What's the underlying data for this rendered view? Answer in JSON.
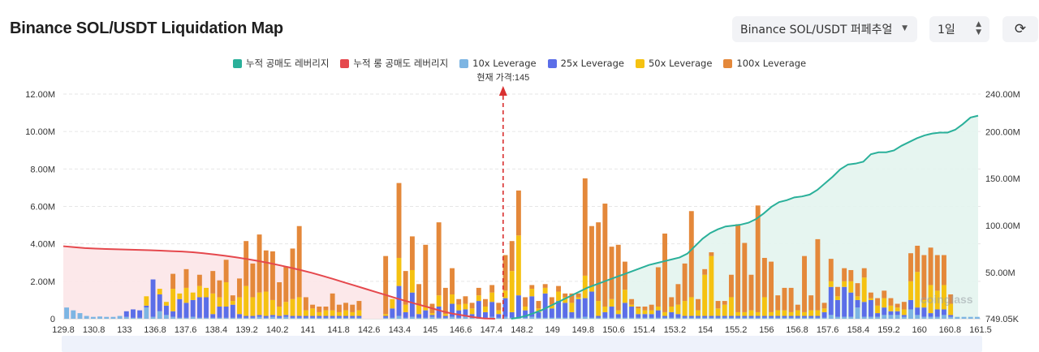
{
  "header": {
    "title": "Binance SOL/USDT Liquidation Map"
  },
  "controls": {
    "exchange_select": "Binance SOL/USDT 퍼페추얼",
    "range_select": "1일"
  },
  "icons": {
    "refresh": "refresh-icon",
    "caret": "chevron-down-icon"
  },
  "watermark": "coinglass",
  "colors": {
    "short_cum": "#2ab09a",
    "long_cum": "#e5484d",
    "lev10": "#7db5e3",
    "lev25": "#5b6ee8",
    "lev50": "#f5c211",
    "lev100": "#e4883a",
    "short_fill": "#e3f4ee",
    "long_fill": "#fce6e8",
    "price_line": "#d93030"
  },
  "chart_data": {
    "type": "bar",
    "title": "Binance SOL/USDT Liquidation Map",
    "current_price": 145,
    "current_price_label": "현재 가격:145",
    "x_tick_labels": [
      "129.8",
      "130.8",
      "133",
      "136.8",
      "137.6",
      "138.4",
      "139.2",
      "140.2",
      "141",
      "141.8",
      "142.6",
      "143.4",
      "145",
      "146.6",
      "147.4",
      "148.2",
      "149",
      "149.8",
      "150.6",
      "151.4",
      "153.2",
      "154",
      "155.2",
      "156",
      "156.8",
      "157.6",
      "158.4",
      "159.2",
      "160",
      "160.8",
      "161.5"
    ],
    "x_range": [
      129.8,
      161.5
    ],
    "y_left_range": [
      0,
      12000000
    ],
    "y_left_ticks": [
      "0",
      "2.00M",
      "4.00M",
      "6.00M",
      "8.00M",
      "10.00M",
      "12.00M"
    ],
    "y_right_range": [
      749050,
      240000000
    ],
    "y_right_ticks": [
      "749.05K",
      "50.00M",
      "100.00M",
      "150.00M",
      "200.00M",
      "240.00M"
    ],
    "grid": true,
    "legend_position": "top",
    "legend": [
      "누적 공매도 레버리지",
      "누적 롱 공매도 레버리지",
      "10x Leverage",
      "25x Leverage",
      "50x Leverage",
      "100x Leverage"
    ],
    "series": [
      {
        "name": "10x Leverage",
        "values": [
          0.6,
          0.45,
          0.3,
          0.15,
          0.1,
          0.12,
          0.1,
          0.1,
          0.15,
          0.1,
          0.05,
          0.05,
          0.6,
          0.1,
          0.4,
          0.2,
          0.1,
          0.05,
          0.05,
          0.1,
          0.05,
          0.05,
          0.05,
          0.05,
          0.05,
          0.05,
          0.05,
          0.05,
          0.05,
          0.1,
          0.05,
          0.1,
          0.05,
          0.1,
          0.05,
          0.05,
          0.05,
          0.05,
          0.05,
          0.05,
          0.05,
          0.05,
          0.05,
          0.05,
          0.05,
          0,
          0,
          0,
          0.05,
          0.05,
          0.15,
          0.05,
          0.1,
          0.05,
          0.05,
          0.1,
          0.05,
          0.05,
          0.1,
          0.05,
          0.1,
          0.05,
          0.05,
          0.05,
          0.1,
          0.05,
          0.1,
          0.05,
          0.05,
          0.05,
          0.1,
          0.05,
          0.05,
          0.05,
          0.05,
          0.05,
          0.05,
          0.05,
          0.1,
          0.05,
          0.05,
          0.05,
          0.05,
          0.05,
          0.05,
          0.05,
          0.05,
          0.05,
          0.05,
          0.05,
          0.05,
          0.05,
          0.05,
          0.05,
          0.05,
          0.05,
          0.05,
          0.05,
          0.05,
          0.05,
          0.05,
          0.05,
          0.05,
          0.05,
          0.05,
          0.05,
          0.05,
          0.05,
          0.05,
          0.05,
          0.05,
          0.05,
          0.05,
          0.05,
          0.05,
          0.2,
          0.1,
          0.1,
          0.1,
          0.6,
          0.1,
          0.1,
          0.1,
          0.2,
          0.2,
          0.2,
          0.1,
          0.5,
          0.2,
          0.1,
          0.1,
          0.1,
          0.2,
          0.1,
          0.1,
          0.1,
          0.1,
          0.1
        ]
      },
      {
        "name": "25x Leverage",
        "values": [
          0,
          0,
          0,
          0,
          0,
          0,
          0,
          0,
          0,
          0.3,
          0.45,
          0.4,
          0.1,
          2.0,
          0.9,
          0.5,
          0.3,
          1.0,
          0.8,
          0.9,
          1.1,
          1.1,
          0.2,
          0.6,
          0.6,
          0.7,
          0.2,
          0.1,
          0.1,
          0.1,
          0.1,
          0.1,
          0.1,
          0.1,
          0.1,
          0.1,
          0.1,
          0.1,
          0.1,
          0.1,
          0.1,
          0.1,
          0.1,
          0.1,
          0.1,
          0,
          0,
          0,
          0.1,
          0.5,
          1.6,
          0.3,
          1.3,
          0.2,
          0.4,
          0.1,
          0.6,
          0.1,
          0.7,
          0.4,
          0.4,
          0.2,
          0.9,
          0.3,
          0.8,
          0.2,
          1.0,
          0.3,
          1.2,
          0.4,
          1.1,
          0.3,
          1.3,
          0.5,
          0.9,
          0.8,
          0.3,
          1.0,
          1.0,
          1.4,
          0.1,
          0.3,
          0.6,
          0.2,
          0.8,
          0.6,
          0.2,
          0.2,
          0.2,
          0.4,
          0.1,
          0.3,
          0.2,
          0.1,
          0.1,
          0.1,
          0.1,
          0.1,
          0.1,
          0.1,
          0.1,
          0.1,
          0.1,
          0.1,
          0.1,
          0.1,
          0.1,
          0.1,
          0.1,
          0.1,
          0.1,
          0.1,
          0.1,
          0.1,
          0.3,
          1.5,
          0.9,
          1.6,
          1.3,
          0.4,
          0.8,
          0.9,
          0.2,
          0.4,
          0.2,
          0.2,
          0.1,
          0.5,
          0.4,
          0.5,
          0.2,
          0.4,
          0.3,
          0.1
        ]
      },
      {
        "name": "50x Leverage",
        "values": [
          0,
          0,
          0,
          0,
          0,
          0,
          0,
          0,
          0,
          0,
          0,
          0,
          0.5,
          0,
          0.3,
          0.2,
          1.2,
          0.3,
          0.8,
          0.4,
          0.6,
          0.5,
          1.1,
          0.5,
          1.3,
          0.2,
          0.9,
          1.6,
          1.0,
          1.2,
          1.3,
          0.8,
          0.5,
          0.7,
          0.9,
          1.0,
          0.3,
          0.4,
          0.2,
          0.3,
          0.3,
          0.2,
          0.3,
          0.2,
          0.3,
          0,
          0,
          0,
          0.1,
          0.5,
          1.5,
          0.4,
          1.2,
          0.5,
          0.2,
          0.1,
          0.6,
          0.1,
          0.5,
          0.3,
          0.3,
          0.3,
          0.3,
          0.3,
          0.5,
          0.2,
          0.4,
          2.2,
          3.2,
          0.2,
          0.4,
          0.2,
          0.3,
          0.2,
          0.5,
          0.3,
          0.5,
          0.1,
          1.2,
          0.3,
          0.8,
          0.3,
          0.4,
          0.2,
          0.7,
          0.1,
          0.3,
          0.2,
          0.2,
          0.2,
          0.2,
          0.3,
          0.5,
          0.8,
          1.0,
          0.3,
          2.2,
          3.2,
          0.4,
          0.6,
          1.0,
          0.2,
          0.2,
          0.3,
          0.2,
          1.0,
          0.2,
          0.3,
          0.3,
          0.2,
          0.3,
          0.2,
          0.3,
          0.3,
          0.2,
          0.3,
          0.2,
          0.3,
          0.6,
          0.2,
          1.3,
          0.1,
          0.4,
          0.5,
          0.3,
          0.2,
          0.3,
          1.0,
          1.9,
          0.4,
          1.5,
          1.0,
          1.3,
          0.6
        ]
      },
      {
        "name": "100x Leverage",
        "values": [
          0,
          0,
          0,
          0,
          0,
          0,
          0,
          0,
          0,
          0,
          0,
          0,
          0,
          0,
          0,
          0,
          0.8,
          0,
          1.0,
          0,
          0.6,
          0,
          1.2,
          0.9,
          1.2,
          0.3,
          1.0,
          2.4,
          1.8,
          3.1,
          2.2,
          2.6,
          1.3,
          1.9,
          2.7,
          3.8,
          0.7,
          0.2,
          0.3,
          0.2,
          0.9,
          0.4,
          0.4,
          0.4,
          0.5,
          0,
          0,
          0,
          3.1,
          0,
          4.0,
          1.8,
          1.8,
          1.1,
          3.3,
          0.5,
          3.9,
          1.4,
          1.4,
          0.3,
          0.4,
          0.3,
          0.4,
          0.4,
          0.4,
          0.4,
          1.9,
          1.6,
          2.4,
          0.5,
          0.2,
          0.4,
          0.2,
          0.4,
          0.3,
          0.2,
          0.5,
          0.2,
          5.2,
          3.2,
          4.2,
          5.5,
          2.8,
          3.5,
          1.5,
          0.3,
          0.1,
          0.2,
          0.3,
          2.1,
          4.2,
          0.5,
          1.1,
          2.0,
          4.6,
          0.6,
          0.3,
          0.2,
          0.4,
          0.2,
          1.2,
          4.7,
          3.7,
          1.9,
          5.7,
          2.1,
          2.7,
          0.8,
          1.2,
          1.3,
          0.3,
          3.0,
          0.8,
          3.8,
          0.3,
          1.2,
          0.5,
          0.7,
          0.6,
          0.7,
          0.5,
          0.3,
          0.4,
          0.4,
          0.4,
          0.2,
          0.4,
          1.5,
          1.4,
          2.4,
          2.0,
          1.9,
          1.6,
          0.5
        ]
      }
    ],
    "cum_long_y": [
      78,
      77,
      76,
      75.5,
      75,
      74.7,
      74.4,
      74.1,
      73.7,
      73.3,
      72.8,
      72.3,
      71.6,
      70.5,
      69.2,
      67.8,
      66.2,
      64.4,
      62.4,
      60.2,
      57.8,
      55.3,
      52.6,
      49.7,
      46.5,
      43.1,
      39.6,
      36.1,
      32.6,
      29.1,
      25.6,
      22.1,
      18.8,
      15.6,
      12.4,
      9.1,
      6.3,
      4.4,
      2.5,
      1.1,
      0.75
    ],
    "cum_short_y": [
      0.75,
      2,
      4,
      7,
      10,
      14,
      18,
      22,
      26,
      30,
      34,
      37,
      40,
      43,
      46,
      49,
      52,
      55,
      58,
      60,
      62,
      64,
      66,
      70,
      78,
      86,
      92,
      96,
      99,
      100,
      101,
      103,
      107,
      113,
      120,
      125,
      127,
      130,
      131,
      133,
      138,
      145,
      152,
      160,
      165,
      166,
      168,
      176,
      178,
      178,
      180,
      185,
      189,
      193,
      196,
      198,
      199,
      199,
      202,
      208,
      215,
      217
    ]
  }
}
